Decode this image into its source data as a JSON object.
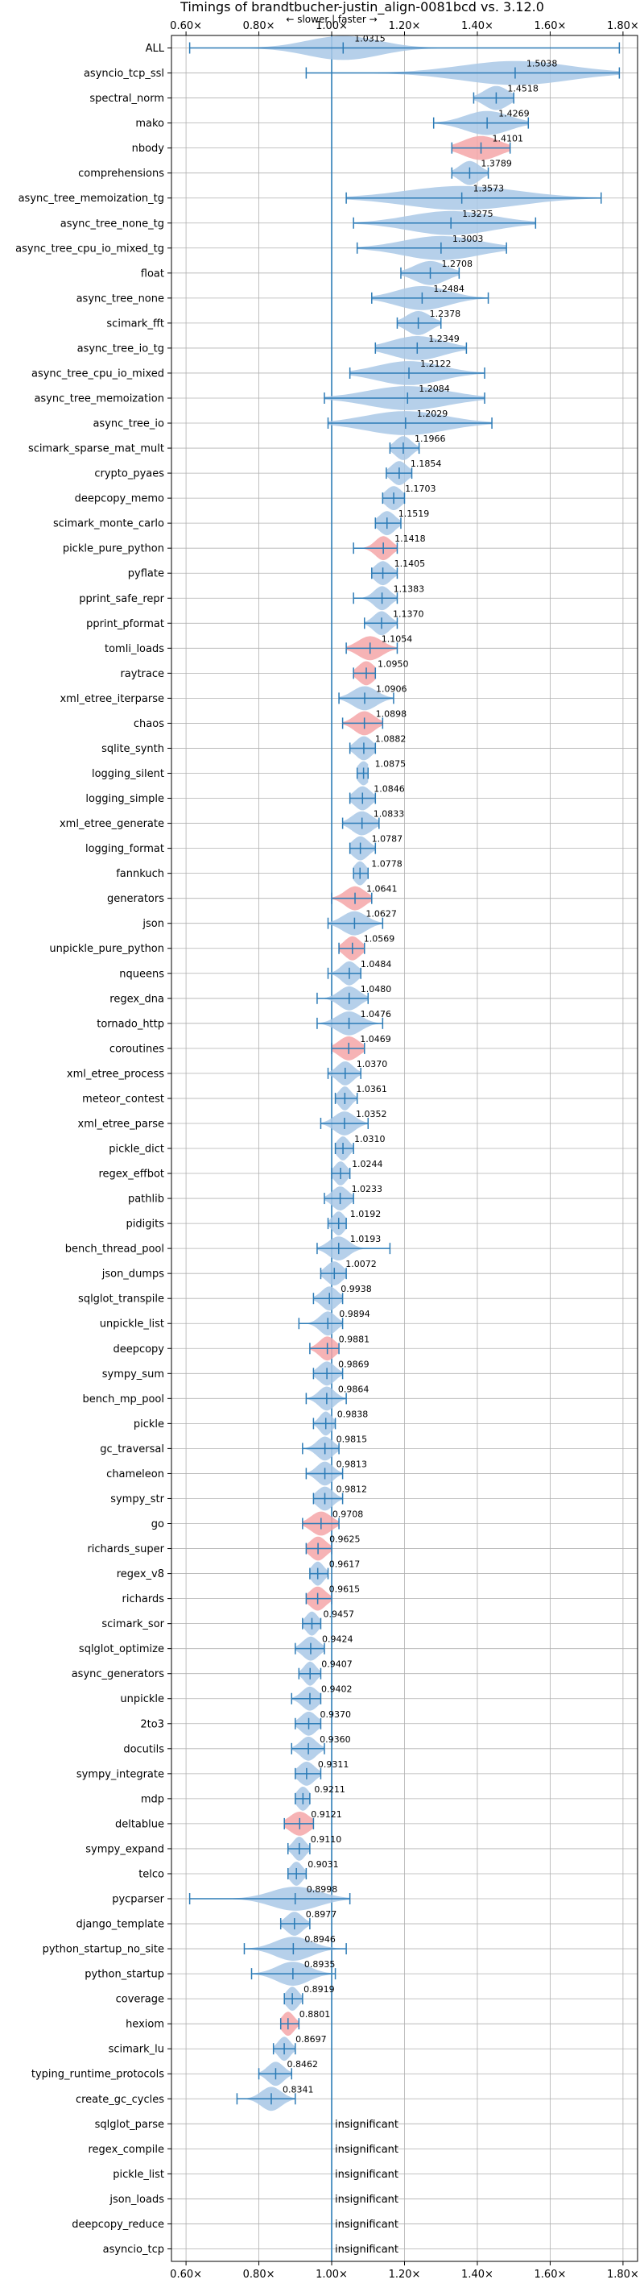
{
  "chart_data": {
    "type": "violin",
    "title": "Timings of brandtbucher-justin_align-0081bcd vs. 3.12.0",
    "subtitle": "← slower | faster →",
    "xlim": [
      0.56,
      1.84
    ],
    "x_ticks": [
      0.6,
      0.8,
      1.0,
      1.2,
      1.4,
      1.6,
      1.8
    ],
    "x_tick_labels": [
      "0.60×",
      "0.80×",
      "1.00×",
      "1.20×",
      "1.40×",
      "1.60×",
      "1.80×"
    ],
    "reference_line": 1.0,
    "grid": true,
    "colors": {
      "faster": "#a9c8e6",
      "slower": "#f4a6a8",
      "line": "#2c7bb6"
    },
    "insignificant_label": "insignificant",
    "benchmarks": [
      {
        "name": "ALL",
        "value": 1.0315,
        "label": "1.0315",
        "lo": 0.61,
        "hi": 1.79,
        "width": 0.18,
        "status": "faster"
      },
      {
        "name": "asyncio_tcp_ssl",
        "value": 1.5038,
        "label": "1.5038",
        "lo": 0.93,
        "hi": 1.79,
        "width": 0.27,
        "status": "faster"
      },
      {
        "name": "spectral_norm",
        "value": 1.4518,
        "label": "1.4518",
        "lo": 1.39,
        "hi": 1.5,
        "width": 0.06,
        "status": "faster"
      },
      {
        "name": "mako",
        "value": 1.4269,
        "label": "1.4269",
        "lo": 1.28,
        "hi": 1.54,
        "width": 0.11,
        "status": "faster"
      },
      {
        "name": "nbody",
        "value": 1.4101,
        "label": "1.4101",
        "lo": 1.33,
        "hi": 1.49,
        "width": 0.09,
        "status": "slower"
      },
      {
        "name": "comprehensions",
        "value": 1.3789,
        "label": "1.3789",
        "lo": 1.33,
        "hi": 1.43,
        "width": 0.05,
        "status": "faster"
      },
      {
        "name": "async_tree_memoization_tg",
        "value": 1.3573,
        "label": "1.3573",
        "lo": 1.04,
        "hi": 1.74,
        "width": 0.28,
        "status": "faster"
      },
      {
        "name": "async_tree_none_tg",
        "value": 1.3275,
        "label": "1.3275",
        "lo": 1.06,
        "hi": 1.56,
        "width": 0.21,
        "status": "faster"
      },
      {
        "name": "async_tree_cpu_io_mixed_tg",
        "value": 1.3003,
        "label": "1.3003",
        "lo": 1.07,
        "hi": 1.48,
        "width": 0.19,
        "status": "faster"
      },
      {
        "name": "float",
        "value": 1.2708,
        "label": "1.2708",
        "lo": 1.19,
        "hi": 1.35,
        "width": 0.08,
        "status": "faster"
      },
      {
        "name": "async_tree_none",
        "value": 1.2484,
        "label": "1.2484",
        "lo": 1.11,
        "hi": 1.43,
        "width": 0.13,
        "status": "faster"
      },
      {
        "name": "scimark_fft",
        "value": 1.2378,
        "label": "1.2378",
        "lo": 1.18,
        "hi": 1.3,
        "width": 0.06,
        "status": "faster"
      },
      {
        "name": "async_tree_io_tg",
        "value": 1.2349,
        "label": "1.2349",
        "lo": 1.12,
        "hi": 1.37,
        "width": 0.13,
        "status": "faster"
      },
      {
        "name": "async_tree_cpu_io_mixed",
        "value": 1.2122,
        "label": "1.2122",
        "lo": 1.05,
        "hi": 1.42,
        "width": 0.16,
        "status": "faster"
      },
      {
        "name": "async_tree_memoization",
        "value": 1.2084,
        "label": "1.2084",
        "lo": 0.98,
        "hi": 1.42,
        "width": 0.2,
        "status": "faster"
      },
      {
        "name": "async_tree_io",
        "value": 1.2029,
        "label": "1.2029",
        "lo": 0.99,
        "hi": 1.44,
        "width": 0.2,
        "status": "faster"
      },
      {
        "name": "scimark_sparse_mat_mult",
        "value": 1.1966,
        "label": "1.1966",
        "lo": 1.16,
        "hi": 1.24,
        "width": 0.04,
        "status": "faster"
      },
      {
        "name": "crypto_pyaes",
        "value": 1.1854,
        "label": "1.1854",
        "lo": 1.15,
        "hi": 1.22,
        "width": 0.04,
        "status": "faster"
      },
      {
        "name": "deepcopy_memo",
        "value": 1.1703,
        "label": "1.1703",
        "lo": 1.14,
        "hi": 1.2,
        "width": 0.04,
        "status": "faster"
      },
      {
        "name": "scimark_monte_carlo",
        "value": 1.1519,
        "label": "1.1519",
        "lo": 1.12,
        "hi": 1.19,
        "width": 0.04,
        "status": "faster"
      },
      {
        "name": "pickle_pure_python",
        "value": 1.1418,
        "label": "1.1418",
        "lo": 1.06,
        "hi": 1.18,
        "width": 0.04,
        "status": "slower"
      },
      {
        "name": "pyflate",
        "value": 1.1405,
        "label": "1.1405",
        "lo": 1.11,
        "hi": 1.18,
        "width": 0.04,
        "status": "faster"
      },
      {
        "name": "pprint_safe_repr",
        "value": 1.1383,
        "label": "1.1383",
        "lo": 1.06,
        "hi": 1.18,
        "width": 0.04,
        "status": "faster"
      },
      {
        "name": "pprint_pformat",
        "value": 1.137,
        "label": "1.1370",
        "lo": 1.09,
        "hi": 1.18,
        "width": 0.04,
        "status": "faster"
      },
      {
        "name": "tomli_loads",
        "value": 1.1054,
        "label": "1.1054",
        "lo": 1.04,
        "hi": 1.18,
        "width": 0.06,
        "status": "slower"
      },
      {
        "name": "raytrace",
        "value": 1.095,
        "label": "1.0950",
        "lo": 1.06,
        "hi": 1.12,
        "width": 0.04,
        "status": "slower"
      },
      {
        "name": "xml_etree_iterparse",
        "value": 1.0906,
        "label": "1.0906",
        "lo": 1.02,
        "hi": 1.17,
        "width": 0.06,
        "status": "faster"
      },
      {
        "name": "chaos",
        "value": 1.0898,
        "label": "1.0898",
        "lo": 1.03,
        "hi": 1.14,
        "width": 0.05,
        "status": "slower"
      },
      {
        "name": "sqlite_synth",
        "value": 1.0882,
        "label": "1.0882",
        "lo": 1.05,
        "hi": 1.12,
        "width": 0.04,
        "status": "faster"
      },
      {
        "name": "logging_silent",
        "value": 1.0875,
        "label": "1.0875",
        "lo": 1.07,
        "hi": 1.1,
        "width": 0.03,
        "status": "faster"
      },
      {
        "name": "logging_simple",
        "value": 1.0846,
        "label": "1.0846",
        "lo": 1.05,
        "hi": 1.12,
        "width": 0.04,
        "status": "faster"
      },
      {
        "name": "xml_etree_generate",
        "value": 1.0833,
        "label": "1.0833",
        "lo": 1.03,
        "hi": 1.13,
        "width": 0.05,
        "status": "faster"
      },
      {
        "name": "logging_format",
        "value": 1.0787,
        "label": "1.0787",
        "lo": 1.05,
        "hi": 1.12,
        "width": 0.04,
        "status": "faster"
      },
      {
        "name": "fannkuch",
        "value": 1.0778,
        "label": "1.0778",
        "lo": 1.06,
        "hi": 1.1,
        "width": 0.03,
        "status": "faster"
      },
      {
        "name": "generators",
        "value": 1.0641,
        "label": "1.0641",
        "lo": 1.0,
        "hi": 1.11,
        "width": 0.05,
        "status": "slower"
      },
      {
        "name": "json",
        "value": 1.0627,
        "label": "1.0627",
        "lo": 0.99,
        "hi": 1.14,
        "width": 0.06,
        "status": "faster"
      },
      {
        "name": "unpickle_pure_python",
        "value": 1.0569,
        "label": "1.0569",
        "lo": 1.02,
        "hi": 1.09,
        "width": 0.04,
        "status": "slower"
      },
      {
        "name": "nqueens",
        "value": 1.0484,
        "label": "1.0484",
        "lo": 0.99,
        "hi": 1.08,
        "width": 0.04,
        "status": "faster"
      },
      {
        "name": "regex_dna",
        "value": 1.048,
        "label": "1.0480",
        "lo": 0.96,
        "hi": 1.1,
        "width": 0.05,
        "status": "faster"
      },
      {
        "name": "tornado_http",
        "value": 1.0476,
        "label": "1.0476",
        "lo": 0.96,
        "hi": 1.14,
        "width": 0.06,
        "status": "faster"
      },
      {
        "name": "coroutines",
        "value": 1.0469,
        "label": "1.0469",
        "lo": 1.0,
        "hi": 1.09,
        "width": 0.05,
        "status": "slower"
      },
      {
        "name": "xml_etree_process",
        "value": 1.037,
        "label": "1.0370",
        "lo": 0.99,
        "hi": 1.08,
        "width": 0.04,
        "status": "faster"
      },
      {
        "name": "meteor_contest",
        "value": 1.0361,
        "label": "1.0361",
        "lo": 1.01,
        "hi": 1.07,
        "width": 0.03,
        "status": "faster"
      },
      {
        "name": "xml_etree_parse",
        "value": 1.0352,
        "label": "1.0352",
        "lo": 0.97,
        "hi": 1.1,
        "width": 0.05,
        "status": "faster"
      },
      {
        "name": "pickle_dict",
        "value": 1.031,
        "label": "1.0310",
        "lo": 1.01,
        "hi": 1.06,
        "width": 0.03,
        "status": "faster"
      },
      {
        "name": "regex_effbot",
        "value": 1.0244,
        "label": "1.0244",
        "lo": 1.0,
        "hi": 1.05,
        "width": 0.03,
        "status": "faster"
      },
      {
        "name": "pathlib",
        "value": 1.0233,
        "label": "1.0233",
        "lo": 0.98,
        "hi": 1.06,
        "width": 0.04,
        "status": "faster"
      },
      {
        "name": "pidigits",
        "value": 1.0192,
        "label": "1.0192",
        "lo": 0.99,
        "hi": 1.04,
        "width": 0.03,
        "status": "faster"
      },
      {
        "name": "bench_thread_pool",
        "value": 1.0193,
        "label": "1.0193",
        "lo": 0.96,
        "hi": 1.16,
        "width": 0.05,
        "status": "faster"
      },
      {
        "name": "json_dumps",
        "value": 1.0072,
        "label": "1.0072",
        "lo": 0.97,
        "hi": 1.04,
        "width": 0.04,
        "status": "faster"
      },
      {
        "name": "sqlglot_transpile",
        "value": 0.9938,
        "label": "0.9938",
        "lo": 0.95,
        "hi": 1.03,
        "width": 0.04,
        "status": "faster"
      },
      {
        "name": "unpickle_list",
        "value": 0.9894,
        "label": "0.9894",
        "lo": 0.91,
        "hi": 1.03,
        "width": 0.04,
        "status": "faster"
      },
      {
        "name": "deepcopy",
        "value": 0.9881,
        "label": "0.9881",
        "lo": 0.94,
        "hi": 1.02,
        "width": 0.04,
        "status": "slower"
      },
      {
        "name": "sympy_sum",
        "value": 0.9869,
        "label": "0.9869",
        "lo": 0.95,
        "hi": 1.03,
        "width": 0.04,
        "status": "faster"
      },
      {
        "name": "bench_mp_pool",
        "value": 0.9864,
        "label": "0.9864",
        "lo": 0.93,
        "hi": 1.04,
        "width": 0.04,
        "status": "faster"
      },
      {
        "name": "pickle",
        "value": 0.9838,
        "label": "0.9838",
        "lo": 0.95,
        "hi": 1.01,
        "width": 0.03,
        "status": "faster"
      },
      {
        "name": "gc_traversal",
        "value": 0.9815,
        "label": "0.9815",
        "lo": 0.92,
        "hi": 1.02,
        "width": 0.04,
        "status": "faster"
      },
      {
        "name": "chameleon",
        "value": 0.9813,
        "label": "0.9813",
        "lo": 0.93,
        "hi": 1.03,
        "width": 0.04,
        "status": "faster"
      },
      {
        "name": "sympy_str",
        "value": 0.9812,
        "label": "0.9812",
        "lo": 0.95,
        "hi": 1.03,
        "width": 0.04,
        "status": "faster"
      },
      {
        "name": "go",
        "value": 0.9708,
        "label": "0.9708",
        "lo": 0.92,
        "hi": 1.02,
        "width": 0.05,
        "status": "slower"
      },
      {
        "name": "richards_super",
        "value": 0.9625,
        "label": "0.9625",
        "lo": 0.93,
        "hi": 1.0,
        "width": 0.04,
        "status": "slower"
      },
      {
        "name": "regex_v8",
        "value": 0.9617,
        "label": "0.9617",
        "lo": 0.94,
        "hi": 0.99,
        "width": 0.03,
        "status": "faster"
      },
      {
        "name": "richards",
        "value": 0.9615,
        "label": "0.9615",
        "lo": 0.93,
        "hi": 1.0,
        "width": 0.04,
        "status": "slower"
      },
      {
        "name": "scimark_sor",
        "value": 0.9457,
        "label": "0.9457",
        "lo": 0.92,
        "hi": 0.97,
        "width": 0.03,
        "status": "faster"
      },
      {
        "name": "sqlglot_optimize",
        "value": 0.9424,
        "label": "0.9424",
        "lo": 0.9,
        "hi": 0.98,
        "width": 0.04,
        "status": "faster"
      },
      {
        "name": "async_generators",
        "value": 0.9407,
        "label": "0.9407",
        "lo": 0.91,
        "hi": 0.97,
        "width": 0.03,
        "status": "faster"
      },
      {
        "name": "unpickle",
        "value": 0.9402,
        "label": "0.9402",
        "lo": 0.89,
        "hi": 0.97,
        "width": 0.04,
        "status": "faster"
      },
      {
        "name": "2to3",
        "value": 0.937,
        "label": "0.9370",
        "lo": 0.9,
        "hi": 0.97,
        "width": 0.04,
        "status": "faster"
      },
      {
        "name": "docutils",
        "value": 0.936,
        "label": "0.9360",
        "lo": 0.89,
        "hi": 0.98,
        "width": 0.04,
        "status": "faster"
      },
      {
        "name": "sympy_integrate",
        "value": 0.9311,
        "label": "0.9311",
        "lo": 0.9,
        "hi": 0.97,
        "width": 0.04,
        "status": "faster"
      },
      {
        "name": "mdp",
        "value": 0.9211,
        "label": "0.9211",
        "lo": 0.9,
        "hi": 0.94,
        "width": 0.03,
        "status": "faster"
      },
      {
        "name": "deltablue",
        "value": 0.9121,
        "label": "0.9121",
        "lo": 0.87,
        "hi": 0.95,
        "width": 0.05,
        "status": "slower"
      },
      {
        "name": "sympy_expand",
        "value": 0.911,
        "label": "0.9110",
        "lo": 0.88,
        "hi": 0.94,
        "width": 0.03,
        "status": "faster"
      },
      {
        "name": "telco",
        "value": 0.9031,
        "label": "0.9031",
        "lo": 0.88,
        "hi": 0.93,
        "width": 0.03,
        "status": "faster"
      },
      {
        "name": "pycparser",
        "value": 0.8998,
        "label": "0.8998",
        "lo": 0.61,
        "hi": 1.05,
        "width": 0.12,
        "status": "faster"
      },
      {
        "name": "django_template",
        "value": 0.8977,
        "label": "0.8977",
        "lo": 0.86,
        "hi": 0.94,
        "width": 0.04,
        "status": "faster"
      },
      {
        "name": "python_startup_no_site",
        "value": 0.8946,
        "label": "0.8946",
        "lo": 0.76,
        "hi": 1.04,
        "width": 0.09,
        "status": "faster"
      },
      {
        "name": "python_startup",
        "value": 0.8935,
        "label": "0.8935",
        "lo": 0.78,
        "hi": 1.01,
        "width": 0.08,
        "status": "faster"
      },
      {
        "name": "coverage",
        "value": 0.8919,
        "label": "0.8919",
        "lo": 0.87,
        "hi": 0.92,
        "width": 0.03,
        "status": "faster"
      },
      {
        "name": "hexiom",
        "value": 0.8801,
        "label": "0.8801",
        "lo": 0.86,
        "hi": 0.91,
        "width": 0.03,
        "status": "slower"
      },
      {
        "name": "scimark_lu",
        "value": 0.8697,
        "label": "0.8697",
        "lo": 0.84,
        "hi": 0.9,
        "width": 0.03,
        "status": "faster"
      },
      {
        "name": "typing_runtime_protocols",
        "value": 0.8462,
        "label": "0.8462",
        "lo": 0.8,
        "hi": 0.89,
        "width": 0.04,
        "status": "faster"
      },
      {
        "name": "create_gc_cycles",
        "value": 0.8341,
        "label": "0.8341",
        "lo": 0.74,
        "hi": 0.9,
        "width": 0.05,
        "status": "faster"
      },
      {
        "name": "sqlglot_parse",
        "status": "insignificant"
      },
      {
        "name": "regex_compile",
        "status": "insignificant"
      },
      {
        "name": "pickle_list",
        "status": "insignificant"
      },
      {
        "name": "json_loads",
        "status": "insignificant"
      },
      {
        "name": "deepcopy_reduce",
        "status": "insignificant"
      },
      {
        "name": "asyncio_tcp",
        "status": "insignificant"
      }
    ]
  }
}
